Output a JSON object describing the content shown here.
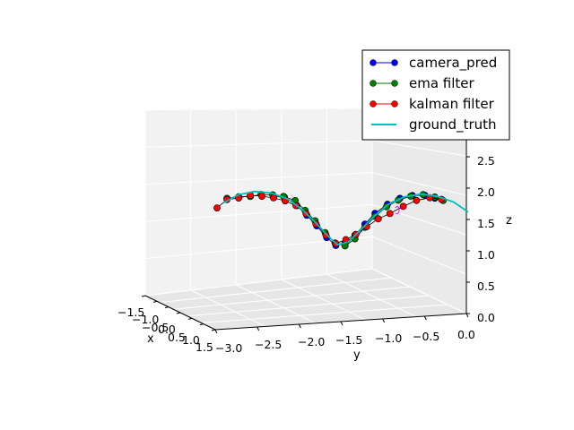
{
  "chart_data": {
    "type": "line",
    "title": "",
    "projection": "3d",
    "xlabel": "x",
    "ylabel": "y",
    "zlabel": "z",
    "xlim": [
      -1.5,
      1.5
    ],
    "ylim": [
      -3.0,
      0.0
    ],
    "zlim": [
      0.0,
      3.0
    ],
    "x_ticks": [
      "−1.5",
      "−1.0",
      "−0.5",
      "0.0",
      "0.5",
      "1.0",
      "1.5"
    ],
    "y_ticks": [
      "−3.0",
      "−2.5",
      "−2.0",
      "−1.5",
      "−1.0",
      "−0.5",
      "0.0"
    ],
    "z_ticks": [
      "0.0",
      "0.5",
      "1.0",
      "1.5",
      "2.0",
      "2.5"
    ],
    "grid": true,
    "legend_position": "top-right",
    "series": [
      {
        "name": "camera_pred",
        "color": "#0000ff",
        "marker": "circle",
        "points": [
          {
            "y": -2.32,
            "z": 1.93
          },
          {
            "y": -2.19,
            "z": 1.92
          },
          {
            "y": -2.04,
            "z": 1.78
          },
          {
            "y": -1.92,
            "z": 1.62
          },
          {
            "y": -1.8,
            "z": 1.45
          },
          {
            "y": -1.68,
            "z": 1.26
          },
          {
            "y": -1.57,
            "z": 1.13
          },
          {
            "y": -1.46,
            "z": 1.16
          },
          {
            "y": -1.34,
            "z": 1.29
          },
          {
            "y": -1.22,
            "z": 1.46
          },
          {
            "y": -1.1,
            "z": 1.63
          },
          {
            "y": -0.95,
            "z": 1.77
          },
          {
            "y": -0.8,
            "z": 1.86
          },
          {
            "y": -0.65,
            "z": 1.9
          },
          {
            "y": -0.5,
            "z": 1.9
          },
          {
            "y": -0.38,
            "z": 1.85
          }
        ]
      },
      {
        "name": "ema filter",
        "color": "#007f00",
        "marker": "circle",
        "points": [
          {
            "y": -2.88,
            "z": 1.92
          },
          {
            "y": -2.74,
            "z": 1.94
          },
          {
            "y": -2.6,
            "z": 1.94
          },
          {
            "y": -2.47,
            "z": 1.97
          },
          {
            "y": -2.33,
            "z": 1.96
          },
          {
            "y": -2.2,
            "z": 1.93
          },
          {
            "y": -2.06,
            "z": 1.86
          },
          {
            "y": -1.94,
            "z": 1.7
          },
          {
            "y": -1.82,
            "z": 1.53
          },
          {
            "y": -1.7,
            "z": 1.34
          },
          {
            "y": -1.58,
            "z": 1.17
          },
          {
            "y": -1.46,
            "z": 1.12
          },
          {
            "y": -1.34,
            "z": 1.23
          },
          {
            "y": -1.22,
            "z": 1.41
          },
          {
            "y": -1.1,
            "z": 1.58
          },
          {
            "y": -0.96,
            "z": 1.73
          },
          {
            "y": -0.82,
            "z": 1.83
          },
          {
            "y": -0.67,
            "z": 1.89
          },
          {
            "y": -0.52,
            "z": 1.91
          },
          {
            "y": -0.38,
            "z": 1.87
          },
          {
            "y": -0.28,
            "z": 1.81
          }
        ]
      },
      {
        "name": "kalman filter",
        "color": "#ff0000",
        "marker": "circle",
        "points": [
          {
            "y": -3.0,
            "z": 1.77
          },
          {
            "y": -2.88,
            "z": 1.9
          },
          {
            "y": -2.74,
            "z": 1.92
          },
          {
            "y": -2.6,
            "z": 1.96
          },
          {
            "y": -2.46,
            "z": 1.94
          },
          {
            "y": -2.32,
            "z": 1.91
          },
          {
            "y": -2.18,
            "z": 1.86
          },
          {
            "y": -2.05,
            "z": 1.78
          },
          {
            "y": -1.93,
            "z": 1.65
          },
          {
            "y": -1.81,
            "z": 1.48
          },
          {
            "y": -1.69,
            "z": 1.3
          },
          {
            "y": -1.57,
            "z": 1.16
          },
          {
            "y": -1.45,
            "z": 1.22
          },
          {
            "y": -1.33,
            "z": 1.3
          },
          {
            "y": -1.2,
            "z": 1.42
          },
          {
            "y": -1.06,
            "z": 1.54
          },
          {
            "y": -0.92,
            "z": 1.62
          },
          {
            "y": -0.76,
            "z": 1.73
          },
          {
            "y": -0.6,
            "z": 1.82
          },
          {
            "y": -0.44,
            "z": 1.86
          },
          {
            "y": -0.3,
            "z": 1.83
          }
        ]
      },
      {
        "name": "ground_truth",
        "color": "#00bfbf",
        "marker": "none",
        "points": [
          {
            "y": -2.92,
            "z": 1.85
          },
          {
            "y": -2.75,
            "z": 1.97
          },
          {
            "y": -2.55,
            "z": 2.02
          },
          {
            "y": -2.35,
            "z": 1.99
          },
          {
            "y": -2.15,
            "z": 1.89
          },
          {
            "y": -1.98,
            "z": 1.72
          },
          {
            "y": -1.82,
            "z": 1.51
          },
          {
            "y": -1.67,
            "z": 1.29
          },
          {
            "y": -1.55,
            "z": 1.14
          },
          {
            "y": -1.42,
            "z": 1.18
          },
          {
            "y": -1.28,
            "z": 1.36
          },
          {
            "y": -1.12,
            "z": 1.57
          },
          {
            "y": -0.95,
            "z": 1.76
          },
          {
            "y": -0.75,
            "z": 1.88
          },
          {
            "y": -0.55,
            "z": 1.92
          },
          {
            "y": -0.35,
            "z": 1.88
          },
          {
            "y": -0.15,
            "z": 1.78
          },
          {
            "y": 0.02,
            "z": 1.62
          }
        ]
      }
    ]
  }
}
